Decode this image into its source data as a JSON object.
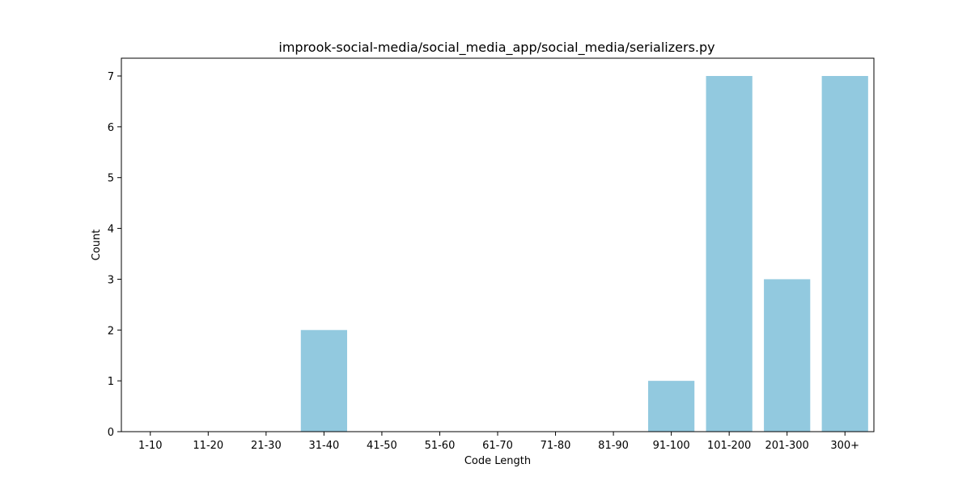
{
  "chart_data": {
    "type": "bar",
    "title": "improok-social-media/social_media_app/social_media/serializers.py",
    "xlabel": "Code Length",
    "ylabel": "Count",
    "categories": [
      "1-10",
      "11-20",
      "21-30",
      "31-40",
      "41-50",
      "51-60",
      "61-70",
      "71-80",
      "81-90",
      "91-100",
      "101-200",
      "201-300",
      "300+"
    ],
    "values": [
      0,
      0,
      0,
      2,
      0,
      0,
      0,
      0,
      0,
      1,
      7,
      3,
      7
    ],
    "ylim": [
      0,
      7.35
    ],
    "yticks": [
      0,
      1,
      2,
      3,
      4,
      5,
      6,
      7
    ],
    "grid": false,
    "legend": false,
    "bar_color": "#92c9df"
  }
}
